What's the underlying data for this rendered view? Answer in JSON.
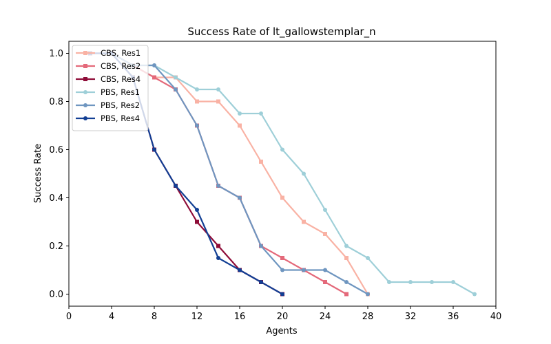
{
  "chart_data": {
    "type": "line",
    "title": "Success Rate of lt_gallowstemplar_n",
    "xlabel": "Agents",
    "ylabel": "Success Rate",
    "xlim": [
      0,
      40
    ],
    "ylim": [
      -0.05,
      1.05
    ],
    "xticks": [
      0,
      4,
      8,
      12,
      16,
      20,
      24,
      28,
      32,
      36,
      40
    ],
    "yticks": [
      0.0,
      0.2,
      0.4,
      0.6,
      0.8,
      1.0
    ],
    "grid": false,
    "legend_position": "top-left",
    "series": [
      {
        "name": "CBS, Res1",
        "color": "#f9b2a4",
        "marker": "square",
        "x": [
          2,
          4,
          6,
          8,
          10,
          12,
          14,
          16,
          18,
          20,
          22,
          24,
          26,
          28
        ],
        "y": [
          1.0,
          1.0,
          0.95,
          0.9,
          0.9,
          0.8,
          0.8,
          0.7,
          0.55,
          0.4,
          0.3,
          0.25,
          0.15,
          0.0
        ]
      },
      {
        "name": "CBS, Res2",
        "color": "#e4697a",
        "marker": "square",
        "x": [
          2,
          4,
          6,
          8,
          10,
          12,
          14,
          16,
          18,
          20,
          22,
          24,
          26
        ],
        "y": [
          1.0,
          1.0,
          0.95,
          0.9,
          0.85,
          0.7,
          0.45,
          0.4,
          0.2,
          0.15,
          0.1,
          0.05,
          0.0
        ]
      },
      {
        "name": "CBS, Res4",
        "color": "#8e0c38",
        "marker": "square",
        "x": [
          2,
          4,
          6,
          8,
          10,
          12,
          14,
          16,
          18,
          20
        ],
        "y": [
          1.0,
          1.0,
          0.9,
          0.6,
          0.45,
          0.3,
          0.2,
          0.1,
          0.05,
          0.0
        ]
      },
      {
        "name": "PBS, Res1",
        "color": "#9ecfd8",
        "marker": "circle",
        "x": [
          2,
          4,
          6,
          8,
          10,
          12,
          14,
          16,
          18,
          20,
          22,
          24,
          26,
          28,
          30,
          32,
          34,
          36,
          38
        ],
        "y": [
          1.0,
          1.0,
          0.95,
          0.95,
          0.9,
          0.85,
          0.85,
          0.75,
          0.75,
          0.6,
          0.5,
          0.35,
          0.2,
          0.15,
          0.05,
          0.05,
          0.05,
          0.05,
          0.0
        ]
      },
      {
        "name": "PBS, Res2",
        "color": "#6f96c0",
        "marker": "circle",
        "x": [
          2,
          4,
          6,
          8,
          10,
          12,
          14,
          16,
          18,
          20,
          22,
          24,
          26,
          28
        ],
        "y": [
          1.0,
          1.0,
          0.95,
          0.95,
          0.85,
          0.7,
          0.45,
          0.4,
          0.2,
          0.1,
          0.1,
          0.1,
          0.05,
          0.0
        ]
      },
      {
        "name": "PBS, Res4",
        "color": "#123f94",
        "marker": "circle",
        "x": [
          2,
          4,
          6,
          8,
          10,
          12,
          14,
          16,
          18,
          20
        ],
        "y": [
          1.0,
          1.0,
          0.9,
          0.6,
          0.45,
          0.35,
          0.15,
          0.1,
          0.05,
          0.0
        ]
      }
    ]
  }
}
